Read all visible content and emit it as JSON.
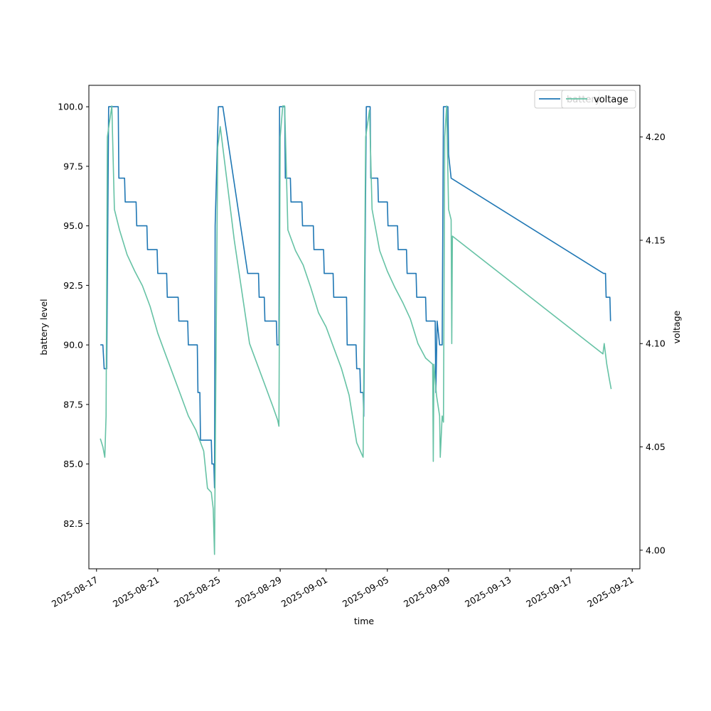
{
  "chart_data": {
    "type": "line",
    "title": "",
    "xlabel": "time",
    "ylabel_left": "battery level",
    "ylabel_right": "voltage",
    "xlim": [
      "2025-08-16T12:00",
      "2025-09-21T12:00"
    ],
    "ylim_left": [
      80.6,
      100.9
    ],
    "ylim_right": [
      3.991,
      4.225
    ],
    "grid": false,
    "legend_placement": "top-right",
    "x_tick_labels": [
      "2025-08-17",
      "2025-08-21",
      "2025-08-25",
      "2025-08-29",
      "2025-09-01",
      "2025-09-05",
      "2025-09-09",
      "2025-09-13",
      "2025-09-17",
      "2025-09-21"
    ],
    "y_left_ticks": [
      "82.5",
      "85.0",
      "87.5",
      "90.0",
      "92.5",
      "95.0",
      "97.5",
      "100.0"
    ],
    "y_right_ticks": [
      "4.00",
      "4.05",
      "4.10",
      "4.15",
      "4.20"
    ],
    "colors": {
      "battery": "#1f77b4",
      "voltage": "#66c2a5"
    },
    "series": [
      {
        "name": "battery",
        "axis": "left",
        "points": [
          [
            "2025-08-17T06:00",
            90
          ],
          [
            "2025-08-17T10:00",
            90
          ],
          [
            "2025-08-17T12:00",
            89
          ],
          [
            "2025-08-17T16:00",
            89
          ],
          [
            "2025-08-17T19:00",
            100
          ],
          [
            "2025-08-18T10:00",
            100
          ],
          [
            "2025-08-18T11:00",
            97
          ],
          [
            "2025-08-18T20:00",
            97
          ],
          [
            "2025-08-18T21:00",
            96
          ],
          [
            "2025-08-19T14:00",
            96
          ],
          [
            "2025-08-19T15:00",
            95
          ],
          [
            "2025-08-20T07:00",
            95
          ],
          [
            "2025-08-20T08:00",
            94
          ],
          [
            "2025-08-20T23:00",
            94
          ],
          [
            "2025-08-21T00:00",
            93
          ],
          [
            "2025-08-21T14:00",
            93
          ],
          [
            "2025-08-21T15:00",
            92
          ],
          [
            "2025-08-22T08:00",
            92
          ],
          [
            "2025-08-22T09:00",
            91
          ],
          [
            "2025-08-22T23:00",
            91
          ],
          [
            "2025-08-23T00:00",
            90
          ],
          [
            "2025-08-23T14:00",
            90
          ],
          [
            "2025-08-23T15:00",
            88
          ],
          [
            "2025-08-23T18:00",
            88
          ],
          [
            "2025-08-23T19:00",
            86
          ],
          [
            "2025-08-24T12:00",
            86
          ],
          [
            "2025-08-24T13:00",
            85
          ],
          [
            "2025-08-24T16:00",
            85
          ],
          [
            "2025-08-24T17:00",
            84
          ],
          [
            "2025-08-24T18:00",
            95
          ],
          [
            "2025-08-24T23:00",
            100
          ],
          [
            "2025-08-25T06:00",
            100
          ],
          [
            "2025-08-26T21:00",
            93
          ],
          [
            "2025-08-27T14:00",
            93
          ],
          [
            "2025-08-27T15:00",
            92
          ],
          [
            "2025-08-27T23:00",
            92
          ],
          [
            "2025-08-28T00:00",
            91
          ],
          [
            "2025-08-28T18:00",
            91
          ],
          [
            "2025-08-28T19:00",
            90
          ],
          [
            "2025-08-28T22:00",
            90
          ],
          [
            "2025-08-28T23:00",
            100
          ],
          [
            "2025-08-29T07:00",
            100
          ],
          [
            "2025-08-29T08:00",
            97
          ],
          [
            "2025-08-29T16:00",
            97
          ],
          [
            "2025-08-29T17:00",
            96
          ],
          [
            "2025-08-30T10:00",
            96
          ],
          [
            "2025-08-30T11:00",
            95
          ],
          [
            "2025-08-31T04:00",
            95
          ],
          [
            "2025-08-31T05:00",
            94
          ],
          [
            "2025-08-31T20:00",
            94
          ],
          [
            "2025-08-31T21:00",
            93
          ],
          [
            "2025-09-01T11:00",
            93
          ],
          [
            "2025-09-01T12:00",
            92
          ],
          [
            "2025-09-02T08:00",
            92
          ],
          [
            "2025-09-02T09:00",
            90
          ],
          [
            "2025-09-02T23:00",
            90
          ],
          [
            "2025-09-03T00:00",
            89
          ],
          [
            "2025-09-03T05:00",
            89
          ],
          [
            "2025-09-03T06:00",
            88
          ],
          [
            "2025-09-03T10:00",
            88
          ],
          [
            "2025-09-03T11:00",
            87
          ],
          [
            "2025-09-03T15:00",
            100
          ],
          [
            "2025-09-03T21:00",
            100
          ],
          [
            "2025-09-03T22:00",
            97
          ],
          [
            "2025-09-04T09:00",
            97
          ],
          [
            "2025-09-04T10:00",
            96
          ],
          [
            "2025-09-05T00:00",
            96
          ],
          [
            "2025-09-05T01:00",
            95
          ],
          [
            "2025-09-05T16:00",
            95
          ],
          [
            "2025-09-05T17:00",
            94
          ],
          [
            "2025-09-06T06:00",
            94
          ],
          [
            "2025-09-06T07:00",
            93
          ],
          [
            "2025-09-06T21:00",
            93
          ],
          [
            "2025-09-06T22:00",
            92
          ],
          [
            "2025-09-07T12:00",
            92
          ],
          [
            "2025-09-07T13:00",
            91
          ],
          [
            "2025-09-08T03:00",
            91
          ],
          [
            "2025-09-08T04:00",
            88
          ],
          [
            "2025-09-08T06:00",
            91
          ],
          [
            "2025-09-08T10:00",
            90
          ],
          [
            "2025-09-08T14:00",
            90
          ],
          [
            "2025-09-08T16:00",
            100
          ],
          [
            "2025-09-08T23:00",
            100
          ],
          [
            "2025-09-09T00:00",
            98
          ],
          [
            "2025-09-09T04:00",
            97
          ],
          [
            "2025-09-19T03:00",
            93
          ],
          [
            "2025-09-19T06:00",
            93
          ],
          [
            "2025-09-19T07:00",
            92
          ],
          [
            "2025-09-19T13:00",
            92
          ],
          [
            "2025-09-19T14:00",
            91
          ]
        ]
      },
      {
        "name": "voltage",
        "axis": "right",
        "points": [
          [
            "2025-08-17T06:00",
            4.054
          ],
          [
            "2025-08-17T10:00",
            4.05
          ],
          [
            "2025-08-17T13:00",
            4.045
          ],
          [
            "2025-08-17T15:00",
            4.065
          ],
          [
            "2025-08-17T17:00",
            4.2
          ],
          [
            "2025-08-18T00:00",
            4.215
          ],
          [
            "2025-08-18T04:00",
            4.165
          ],
          [
            "2025-08-18T12:00",
            4.155
          ],
          [
            "2025-08-19T00:00",
            4.143
          ],
          [
            "2025-08-19T12:00",
            4.135
          ],
          [
            "2025-08-20T00:00",
            4.128
          ],
          [
            "2025-08-20T12:00",
            4.118
          ],
          [
            "2025-08-21T00:00",
            4.105
          ],
          [
            "2025-08-21T12:00",
            4.095
          ],
          [
            "2025-08-22T00:00",
            4.085
          ],
          [
            "2025-08-22T12:00",
            4.075
          ],
          [
            "2025-08-23T00:00",
            4.065
          ],
          [
            "2025-08-23T12:00",
            4.058
          ],
          [
            "2025-08-24T00:00",
            4.048
          ],
          [
            "2025-08-24T06:00",
            4.03
          ],
          [
            "2025-08-24T12:00",
            4.028
          ],
          [
            "2025-08-24T15:00",
            4.02
          ],
          [
            "2025-08-24T17:00",
            3.998
          ],
          [
            "2025-08-24T19:00",
            4.08
          ],
          [
            "2025-08-24T22:00",
            4.195
          ],
          [
            "2025-08-25T02:00",
            4.205
          ],
          [
            "2025-08-26T00:00",
            4.15
          ],
          [
            "2025-08-27T00:00",
            4.1
          ],
          [
            "2025-08-28T00:00",
            4.08
          ],
          [
            "2025-08-28T12:00",
            4.07
          ],
          [
            "2025-08-28T20:00",
            4.063
          ],
          [
            "2025-08-28T22:00",
            4.06
          ],
          [
            "2025-08-29T00:00",
            4.2
          ],
          [
            "2025-08-29T04:00",
            4.215
          ],
          [
            "2025-08-29T07:00",
            4.215
          ],
          [
            "2025-08-29T12:00",
            4.155
          ],
          [
            "2025-08-30T00:00",
            4.145
          ],
          [
            "2025-08-30T12:00",
            4.138
          ],
          [
            "2025-08-31T00:00",
            4.127
          ],
          [
            "2025-08-31T12:00",
            4.115
          ],
          [
            "2025-09-01T00:00",
            4.108
          ],
          [
            "2025-09-01T12:00",
            4.098
          ],
          [
            "2025-09-02T00:00",
            4.088
          ],
          [
            "2025-09-02T12:00",
            4.075
          ],
          [
            "2025-09-03T00:00",
            4.052
          ],
          [
            "2025-09-03T10:00",
            4.045
          ],
          [
            "2025-09-03T14:00",
            4.2
          ],
          [
            "2025-09-03T20:00",
            4.213
          ],
          [
            "2025-09-04T00:00",
            4.165
          ],
          [
            "2025-09-04T12:00",
            4.145
          ],
          [
            "2025-09-05T00:00",
            4.135
          ],
          [
            "2025-09-05T12:00",
            4.127
          ],
          [
            "2025-09-06T00:00",
            4.12
          ],
          [
            "2025-09-06T12:00",
            4.112
          ],
          [
            "2025-09-07T00:00",
            4.1
          ],
          [
            "2025-09-07T12:00",
            4.093
          ],
          [
            "2025-09-07T23:00",
            4.09
          ],
          [
            "2025-09-08T00:00",
            4.043
          ],
          [
            "2025-09-08T01:00",
            4.09
          ],
          [
            "2025-09-08T05:00",
            4.075
          ],
          [
            "2025-09-08T10:00",
            4.065
          ],
          [
            "2025-09-08T11:00",
            4.045
          ],
          [
            "2025-09-08T14:00",
            4.065
          ],
          [
            "2025-09-08T16:00",
            4.062
          ],
          [
            "2025-09-08T18:00",
            4.2
          ],
          [
            "2025-09-08T21:00",
            4.215
          ],
          [
            "2025-09-09T00:00",
            4.165
          ],
          [
            "2025-09-09T04:00",
            4.16
          ],
          [
            "2025-09-09T05:00",
            4.1
          ],
          [
            "2025-09-09T06:00",
            4.152
          ],
          [
            "2025-09-19T02:00",
            4.095
          ],
          [
            "2025-09-19T04:00",
            4.1
          ],
          [
            "2025-09-19T08:00",
            4.09
          ],
          [
            "2025-09-19T12:00",
            4.083
          ],
          [
            "2025-09-19T15:00",
            4.078
          ]
        ]
      }
    ]
  }
}
